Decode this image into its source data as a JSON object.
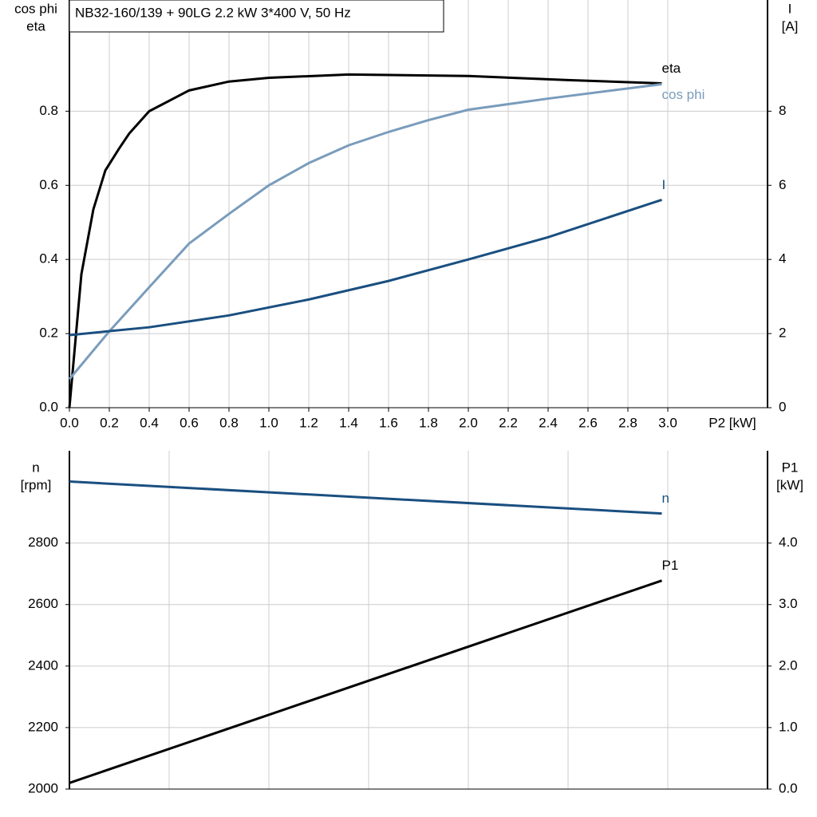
{
  "chart_data": [
    {
      "type": "line",
      "title": "NB32-160/139 + 90LG   2.2 kW   3*400 V, 50 Hz",
      "ylabel": [
        "cos phi",
        "eta"
      ],
      "y2label": [
        "I",
        "[A]"
      ],
      "xlabel": "P2 [kW]",
      "xlim": [
        0,
        3.5
      ],
      "ylim": [
        0,
        1.1
      ],
      "y2lim": [
        0,
        11
      ],
      "xticks": [
        {
          "value": 0,
          "label": "0.0"
        },
        {
          "value": 0.2,
          "label": "0.2"
        },
        {
          "value": 0.4,
          "label": "0.4"
        },
        {
          "value": 0.6,
          "label": "0.6"
        },
        {
          "value": 0.8,
          "label": "0.8"
        },
        {
          "value": 1,
          "label": "1.0"
        },
        {
          "value": 1.2,
          "label": "1.2"
        },
        {
          "value": 1.4,
          "label": "1.4"
        },
        {
          "value": 1.6,
          "label": "1.6"
        },
        {
          "value": 1.8,
          "label": "1.8"
        },
        {
          "value": 2,
          "label": "2.0"
        },
        {
          "value": 2.2,
          "label": "2.2"
        },
        {
          "value": 2.4,
          "label": "2.4"
        },
        {
          "value": 2.6,
          "label": "2.6"
        },
        {
          "value": 2.8,
          "label": "2.8"
        },
        {
          "value": 3,
          "label": "3.0"
        }
      ],
      "yticks": [
        {
          "value": 0,
          "label": "0.0"
        },
        {
          "value": 0.2,
          "label": "0.2"
        },
        {
          "value": 0.4,
          "label": "0.4"
        },
        {
          "value": 0.6,
          "label": "0.6"
        },
        {
          "value": 0.8,
          "label": "0.8"
        }
      ],
      "y2ticks": [
        0,
        2,
        4,
        6,
        8
      ],
      "grid": true,
      "series": [
        {
          "name": "eta",
          "color": "#000000",
          "x": [
            0,
            0.06,
            0.12,
            0.18,
            0.25,
            0.3,
            0.4,
            0.6,
            0.8,
            1.0,
            1.4,
            2.0,
            2.5,
            2.97
          ],
          "values": [
            0,
            0.36,
            0.535,
            0.64,
            0.7,
            0.74,
            0.8,
            0.856,
            0.88,
            0.89,
            0.899,
            0.895,
            0.884,
            0.875
          ]
        },
        {
          "name": "cos phi",
          "color": "#7a9cbc",
          "x": [
            0,
            0.2,
            0.4,
            0.6,
            0.8,
            1.0,
            1.2,
            1.4,
            1.6,
            1.8,
            2.0,
            2.4,
            2.97
          ],
          "values": [
            0.077,
            0.206,
            0.325,
            0.443,
            0.523,
            0.6,
            0.66,
            0.708,
            0.744,
            0.776,
            0.804,
            0.834,
            0.873
          ]
        },
        {
          "name": "I",
          "color": "#1a4f80",
          "axis": "y2",
          "x": [
            0,
            0.4,
            0.8,
            1.2,
            1.6,
            2.0,
            2.4,
            2.97
          ],
          "values": [
            1.96,
            2.17,
            2.49,
            2.92,
            3.42,
            4.0,
            4.6,
            5.61
          ]
        }
      ]
    },
    {
      "type": "line",
      "ylabel": [
        "n",
        "[rpm]"
      ],
      "y2label": [
        "P1",
        "[kW]"
      ],
      "xlim": [
        0,
        3.5
      ],
      "ylim": [
        2000,
        3100
      ],
      "y2lim": [
        0,
        5.5
      ],
      "xgrid": [
        0,
        0.5,
        1,
        1.5,
        2,
        2.5,
        3,
        3.5
      ],
      "yticks": [
        2000,
        2200,
        2400,
        2600,
        2800
      ],
      "y2ticks": [
        {
          "value": 0,
          "label": "0.0"
        },
        {
          "value": 1,
          "label": "1.0"
        },
        {
          "value": 2,
          "label": "2.0"
        },
        {
          "value": 3,
          "label": "3.0"
        },
        {
          "value": 4,
          "label": "4.0"
        }
      ],
      "grid": true,
      "series": [
        {
          "name": "n",
          "color": "#1a4f80",
          "x": [
            0,
            2.97
          ],
          "values": [
            3000,
            2896
          ]
        },
        {
          "name": "P1",
          "color": "#000000",
          "axis": "y2",
          "x": [
            0,
            2.97
          ],
          "values": [
            0.1,
            3.39
          ]
        }
      ]
    }
  ]
}
